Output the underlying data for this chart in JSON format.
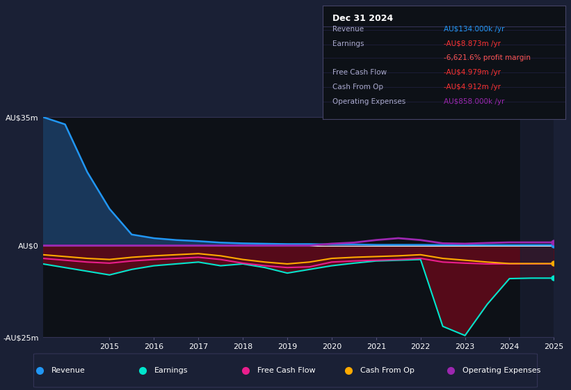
{
  "bg_color": "#1a2035",
  "plot_bg_color": "#0d1117",
  "title": "Dec 31 2024",
  "ylim": [
    -25,
    35
  ],
  "yticks": [
    -25,
    0,
    35
  ],
  "ytick_labels": [
    "-AU$25m",
    "AU$0",
    "AU$35m"
  ],
  "years": [
    2013.5,
    2014.0,
    2014.5,
    2015.0,
    2015.5,
    2016.0,
    2016.5,
    2017.0,
    2017.5,
    2018.0,
    2018.5,
    2019.0,
    2019.5,
    2020.0,
    2020.5,
    2021.0,
    2021.5,
    2022.0,
    2022.5,
    2023.0,
    2023.5,
    2024.0,
    2024.5,
    2025.0
  ],
  "revenue": [
    35.0,
    33.0,
    20.0,
    10.0,
    3.0,
    2.0,
    1.5,
    1.2,
    0.8,
    0.6,
    0.5,
    0.4,
    0.4,
    0.3,
    0.3,
    0.2,
    0.2,
    0.2,
    0.15,
    0.15,
    0.13,
    0.13,
    0.13,
    0.134
  ],
  "earnings": [
    -5.0,
    -6.0,
    -7.0,
    -8.0,
    -6.5,
    -5.5,
    -5.0,
    -4.5,
    -5.5,
    -5.0,
    -6.0,
    -7.5,
    -6.5,
    -5.5,
    -4.8,
    -4.2,
    -4.0,
    -3.8,
    -22.0,
    -24.5,
    -16.0,
    -9.0,
    -8.87,
    -8.873
  ],
  "free_cf": [
    -3.5,
    -4.0,
    -4.5,
    -4.8,
    -4.2,
    -3.8,
    -3.5,
    -3.2,
    -3.8,
    -4.8,
    -5.5,
    -6.0,
    -5.8,
    -4.5,
    -4.2,
    -4.0,
    -3.8,
    -3.5,
    -4.5,
    -4.8,
    -5.0,
    -4.98,
    -4.979,
    -4.979
  ],
  "cash_from_op": [
    -2.5,
    -3.0,
    -3.5,
    -3.8,
    -3.2,
    -2.8,
    -2.5,
    -2.2,
    -2.8,
    -3.8,
    -4.5,
    -5.0,
    -4.5,
    -3.5,
    -3.2,
    -3.0,
    -2.8,
    -2.5,
    -3.5,
    -4.0,
    -4.5,
    -4.91,
    -4.912,
    -4.912
  ],
  "op_expenses": [
    0.0,
    0.0,
    0.0,
    0.0,
    0.0,
    0.0,
    0.0,
    0.0,
    0.0,
    0.0,
    0.0,
    0.0,
    0.0,
    0.5,
    0.8,
    1.5,
    2.0,
    1.5,
    0.6,
    0.5,
    0.7,
    0.858,
    0.858,
    0.858
  ],
  "revenue_color": "#2196f3",
  "earnings_color": "#00e5cc",
  "free_cf_color": "#e91e8c",
  "cash_from_op_color": "#ffaa00",
  "op_expenses_color": "#9c27b0",
  "revenue_fill_color": "#1a3a5e",
  "earnings_fill_color": "#5a0a1a",
  "legend_items": [
    {
      "label": "Revenue",
      "color": "#2196f3"
    },
    {
      "label": "Earnings",
      "color": "#00e5cc"
    },
    {
      "label": "Free Cash Flow",
      "color": "#e91e8c"
    },
    {
      "label": "Cash From Op",
      "color": "#ffaa00"
    },
    {
      "label": "Operating Expenses",
      "color": "#9c27b0"
    }
  ],
  "info_title": "Dec 31 2024",
  "info_rows": [
    {
      "label": "Revenue",
      "value": "AU$134.000k /yr",
      "value_color": "#2196f3"
    },
    {
      "label": "Earnings",
      "value": "-AU$8.873m /yr",
      "value_color": "#ff3333"
    },
    {
      "label": "",
      "value": "-6,621.6% profit margin",
      "value_color": "#ff5555"
    },
    {
      "label": "Free Cash Flow",
      "value": "-AU$4.979m /yr",
      "value_color": "#ff3333"
    },
    {
      "label": "Cash From Op",
      "value": "-AU$4.912m /yr",
      "value_color": "#ff3333"
    },
    {
      "label": "Operating Expenses",
      "value": "AU$858.000k /yr",
      "value_color": "#9c27b0"
    }
  ]
}
